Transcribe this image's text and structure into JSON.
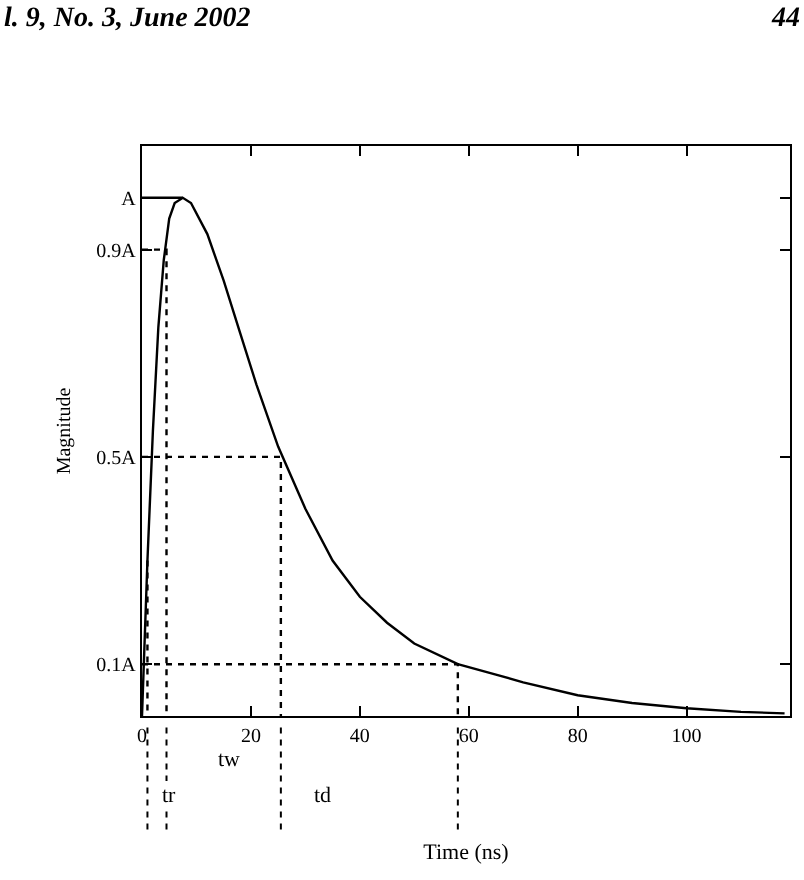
{
  "chart_data": {
    "type": "line",
    "xlabel": "Time (ns)",
    "ylabel": "Magnitude",
    "annotations": [
      "l. 9, No. 3, June 2002",
      "44",
      "tw",
      "tr",
      "td"
    ],
    "series": [
      {
        "color": "#000000",
        "line_style": "solid",
        "x": [
          0,
          1,
          2,
          3,
          4,
          5,
          6,
          7.5,
          9,
          12,
          15,
          18,
          21,
          25,
          30,
          35,
          40,
          45,
          50,
          58,
          65,
          70,
          80,
          90,
          100,
          110,
          118
        ],
        "values": [
          0,
          0.3,
          0.55,
          0.75,
          0.88,
          0.96,
          0.99,
          1.0,
          0.99,
          0.93,
          0.84,
          0.74,
          0.64,
          0.52,
          0.4,
          0.3,
          0.23,
          0.18,
          0.14,
          0.1,
          0.08,
          0.065,
          0.04,
          0.025,
          0.015,
          0.008,
          0.005
        ]
      },
      {
        "color": "#000000",
        "line_style": "solid",
        "x": [
          0,
          7.5
        ],
        "values": [
          1,
          1
        ]
      },
      {
        "color": "#000000",
        "line_style": "dotted",
        "x": [
          0,
          4.5,
          4.5
        ],
        "values": [
          0.9,
          0.9,
          0
        ]
      },
      {
        "color": "#000000",
        "line_style": "dotted",
        "x": [
          0,
          25.5,
          25.5
        ],
        "values": [
          0.5,
          0.5,
          0
        ]
      },
      {
        "color": "#000000",
        "line_style": "dotted",
        "x": [
          0,
          58,
          58
        ],
        "values": [
          0.1,
          0.1,
          0
        ]
      },
      {
        "color": "#000000",
        "line_style": "dotted",
        "x": [
          1,
          1
        ],
        "values": [
          0.3,
          0
        ]
      }
    ],
    "xlim": [
      0,
      119
    ],
    "xticks": [
      0,
      20,
      40,
      60,
      80,
      100
    ],
    "ylim": [
      0,
      1.1
    ],
    "yticks": [
      {
        "value": 0.1,
        "label": "0.1A"
      },
      {
        "value": 0.5,
        "label": "0.5A"
      },
      {
        "value": 0.9,
        "label": "0.9A"
      },
      {
        "value": 1,
        "label": "A"
      }
    ],
    "marker": "none"
  }
}
